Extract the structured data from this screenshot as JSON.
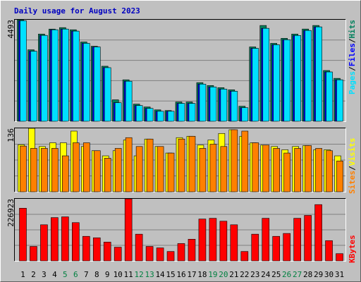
{
  "chart_data": [
    {
      "type": "bar",
      "title": "Daily usage for August 2023",
      "legend_separator": "/",
      "ylim": [
        0,
        4493
      ],
      "yticks": [
        4493
      ],
      "grid_divisions": 5,
      "series": [
        {
          "name": "Hits",
          "color": "#00805c",
          "values": [
            4493,
            3164,
            3860,
            4080,
            4145,
            4050,
            3510,
            3320,
            2436,
            950,
            1835,
            760,
            633,
            506,
            475,
            854,
            854,
            1709,
            1582,
            1487,
            1392,
            665,
            3290,
            4240,
            3449,
            3671,
            3860,
            4082,
            4240,
            2247,
            1899
          ]
        },
        {
          "name": "Files",
          "color": "#0000ff",
          "values": [
            4450,
            3100,
            3800,
            4050,
            4080,
            3990,
            3450,
            3290,
            2373,
            823,
            1772,
            696,
            570,
            443,
            443,
            791,
            791,
            1645,
            1519,
            1424,
            1329,
            601,
            3228,
            4113,
            3386,
            3607,
            3797,
            4018,
            4177,
            2183,
            1835
          ]
        },
        {
          "name": "Pages",
          "color": "#00e0ff",
          "values": [
            4450,
            3100,
            3800,
            4050,
            4080,
            3990,
            3450,
            3290,
            2373,
            823,
            1772,
            696,
            570,
            443,
            443,
            791,
            791,
            1645,
            1519,
            1424,
            1329,
            601,
            3228,
            4113,
            3386,
            3607,
            3797,
            4018,
            4177,
            2183,
            1835
          ]
        }
      ]
    },
    {
      "type": "bar",
      "ylim": [
        0,
        136
      ],
      "yticks": [
        136
      ],
      "grid_divisions": 4,
      "series": [
        {
          "name": "Visits",
          "color": "#ffff00",
          "values": [
            101,
            136,
            97,
            105,
            105,
            130,
            97,
            88,
            77,
            88,
            111,
            77,
            113,
            97,
            83,
            116,
            119,
            100,
            111,
            125,
            133,
            119,
            105,
            100,
            97,
            90,
            97,
            99,
            90,
            90,
            77
          ]
        },
        {
          "name": "Sites",
          "color": "#ff8000",
          "values": [
            98,
            93,
            93,
            93,
            77,
            105,
            105,
            88,
            72,
            93,
            116,
            97,
            113,
            97,
            83,
            113,
            119,
            93,
            102,
            97,
            133,
            130,
            105,
            100,
            93,
            83,
            93,
            99,
            93,
            88,
            66
          ]
        }
      ]
    },
    {
      "type": "bar",
      "ylim": [
        0,
        226923
      ],
      "yticks": [
        226923
      ],
      "grid_divisions": 4,
      "categories": [
        "1",
        "2",
        "3",
        "4",
        "5",
        "6",
        "7",
        "8",
        "9",
        "10",
        "11",
        "12",
        "13",
        "14",
        "15",
        "16",
        "17",
        "18",
        "19",
        "20",
        "21",
        "22",
        "23",
        "24",
        "25",
        "26",
        "27",
        "28",
        "29",
        "30",
        "31"
      ],
      "category_colors": [
        "#000000",
        "#000000",
        "#000000",
        "#000000",
        "#008040",
        "#008040",
        "#000000",
        "#000000",
        "#000000",
        "#000000",
        "#000000",
        "#008040",
        "#008040",
        "#000000",
        "#000000",
        "#000000",
        "#000000",
        "#000000",
        "#008040",
        "#008040",
        "#000000",
        "#000000",
        "#000000",
        "#000000",
        "#000000",
        "#008040",
        "#008040",
        "#000000",
        "#000000",
        "#000000",
        "#000000"
      ],
      "series": [
        {
          "name": "KBytes",
          "color": "#ff0000",
          "values": [
            192600,
            52800,
            132000,
            158300,
            161000,
            139900,
            89700,
            84400,
            68600,
            50100,
            226923,
            97600,
            52800,
            47500,
            34300,
            63300,
            79200,
            153000,
            155700,
            145100,
            132000,
            34300,
            97600,
            155700,
            89700,
            100300,
            155700,
            166300,
            205800,
            73900,
            26400
          ]
        }
      ]
    }
  ]
}
